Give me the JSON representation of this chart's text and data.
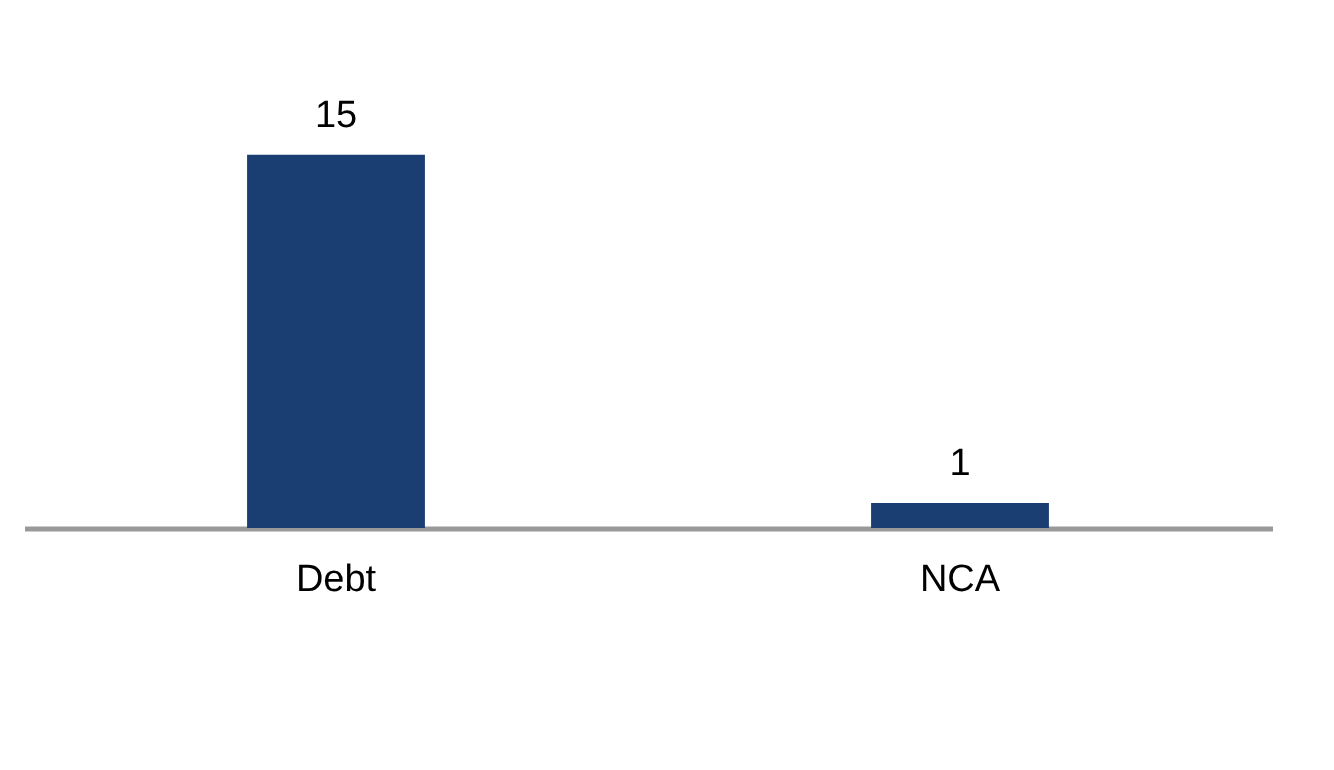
{
  "chart_data": {
    "type": "bar",
    "categories": [
      "Debt",
      "NCA"
    ],
    "values": [
      15,
      1
    ],
    "color": "#1a3e72",
    "data_labels": true
  }
}
